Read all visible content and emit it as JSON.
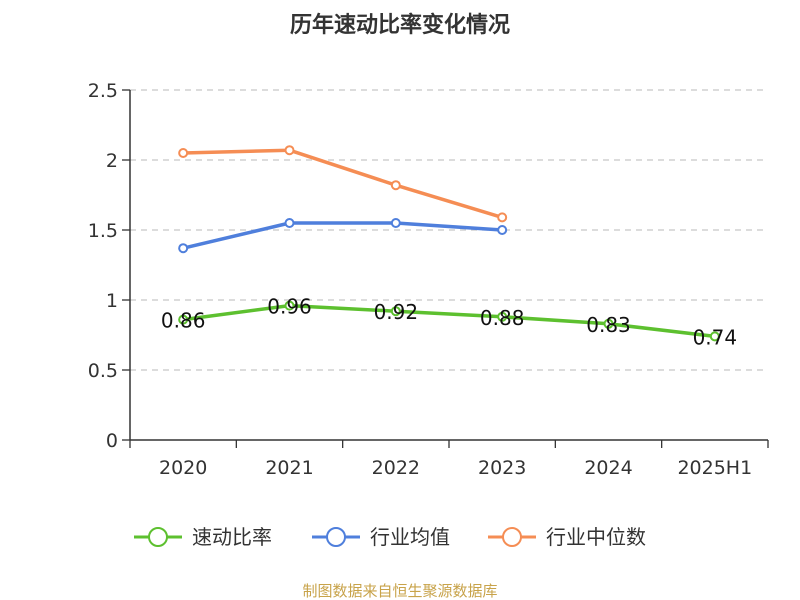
{
  "chart_data": {
    "type": "line",
    "title": "历年速动比率变化情况",
    "categories": [
      "2020",
      "2021",
      "2022",
      "2023",
      "2024",
      "2025H1"
    ],
    "ylim": [
      0,
      2.5
    ],
    "yticks": [
      "0",
      "0.5",
      "1",
      "1.5",
      "2",
      "2.5"
    ],
    "grid": true,
    "legend_position": "bottom",
    "series": [
      {
        "name": "速动比率",
        "color": "#5dc02f",
        "values": [
          0.86,
          0.96,
          0.92,
          0.88,
          0.83,
          0.74
        ],
        "labels": [
          "0.86",
          "0.96",
          "0.92",
          "0.88",
          "0.83",
          "0.74"
        ]
      },
      {
        "name": "行业均值",
        "color": "#4f7fdc",
        "values": [
          1.37,
          1.55,
          1.55,
          1.5,
          null,
          null
        ]
      },
      {
        "name": "行业中位数",
        "color": "#f58d54",
        "values": [
          2.05,
          2.07,
          1.82,
          1.59,
          null,
          null
        ]
      }
    ],
    "source": "制图数据来自恒生聚源数据库"
  }
}
